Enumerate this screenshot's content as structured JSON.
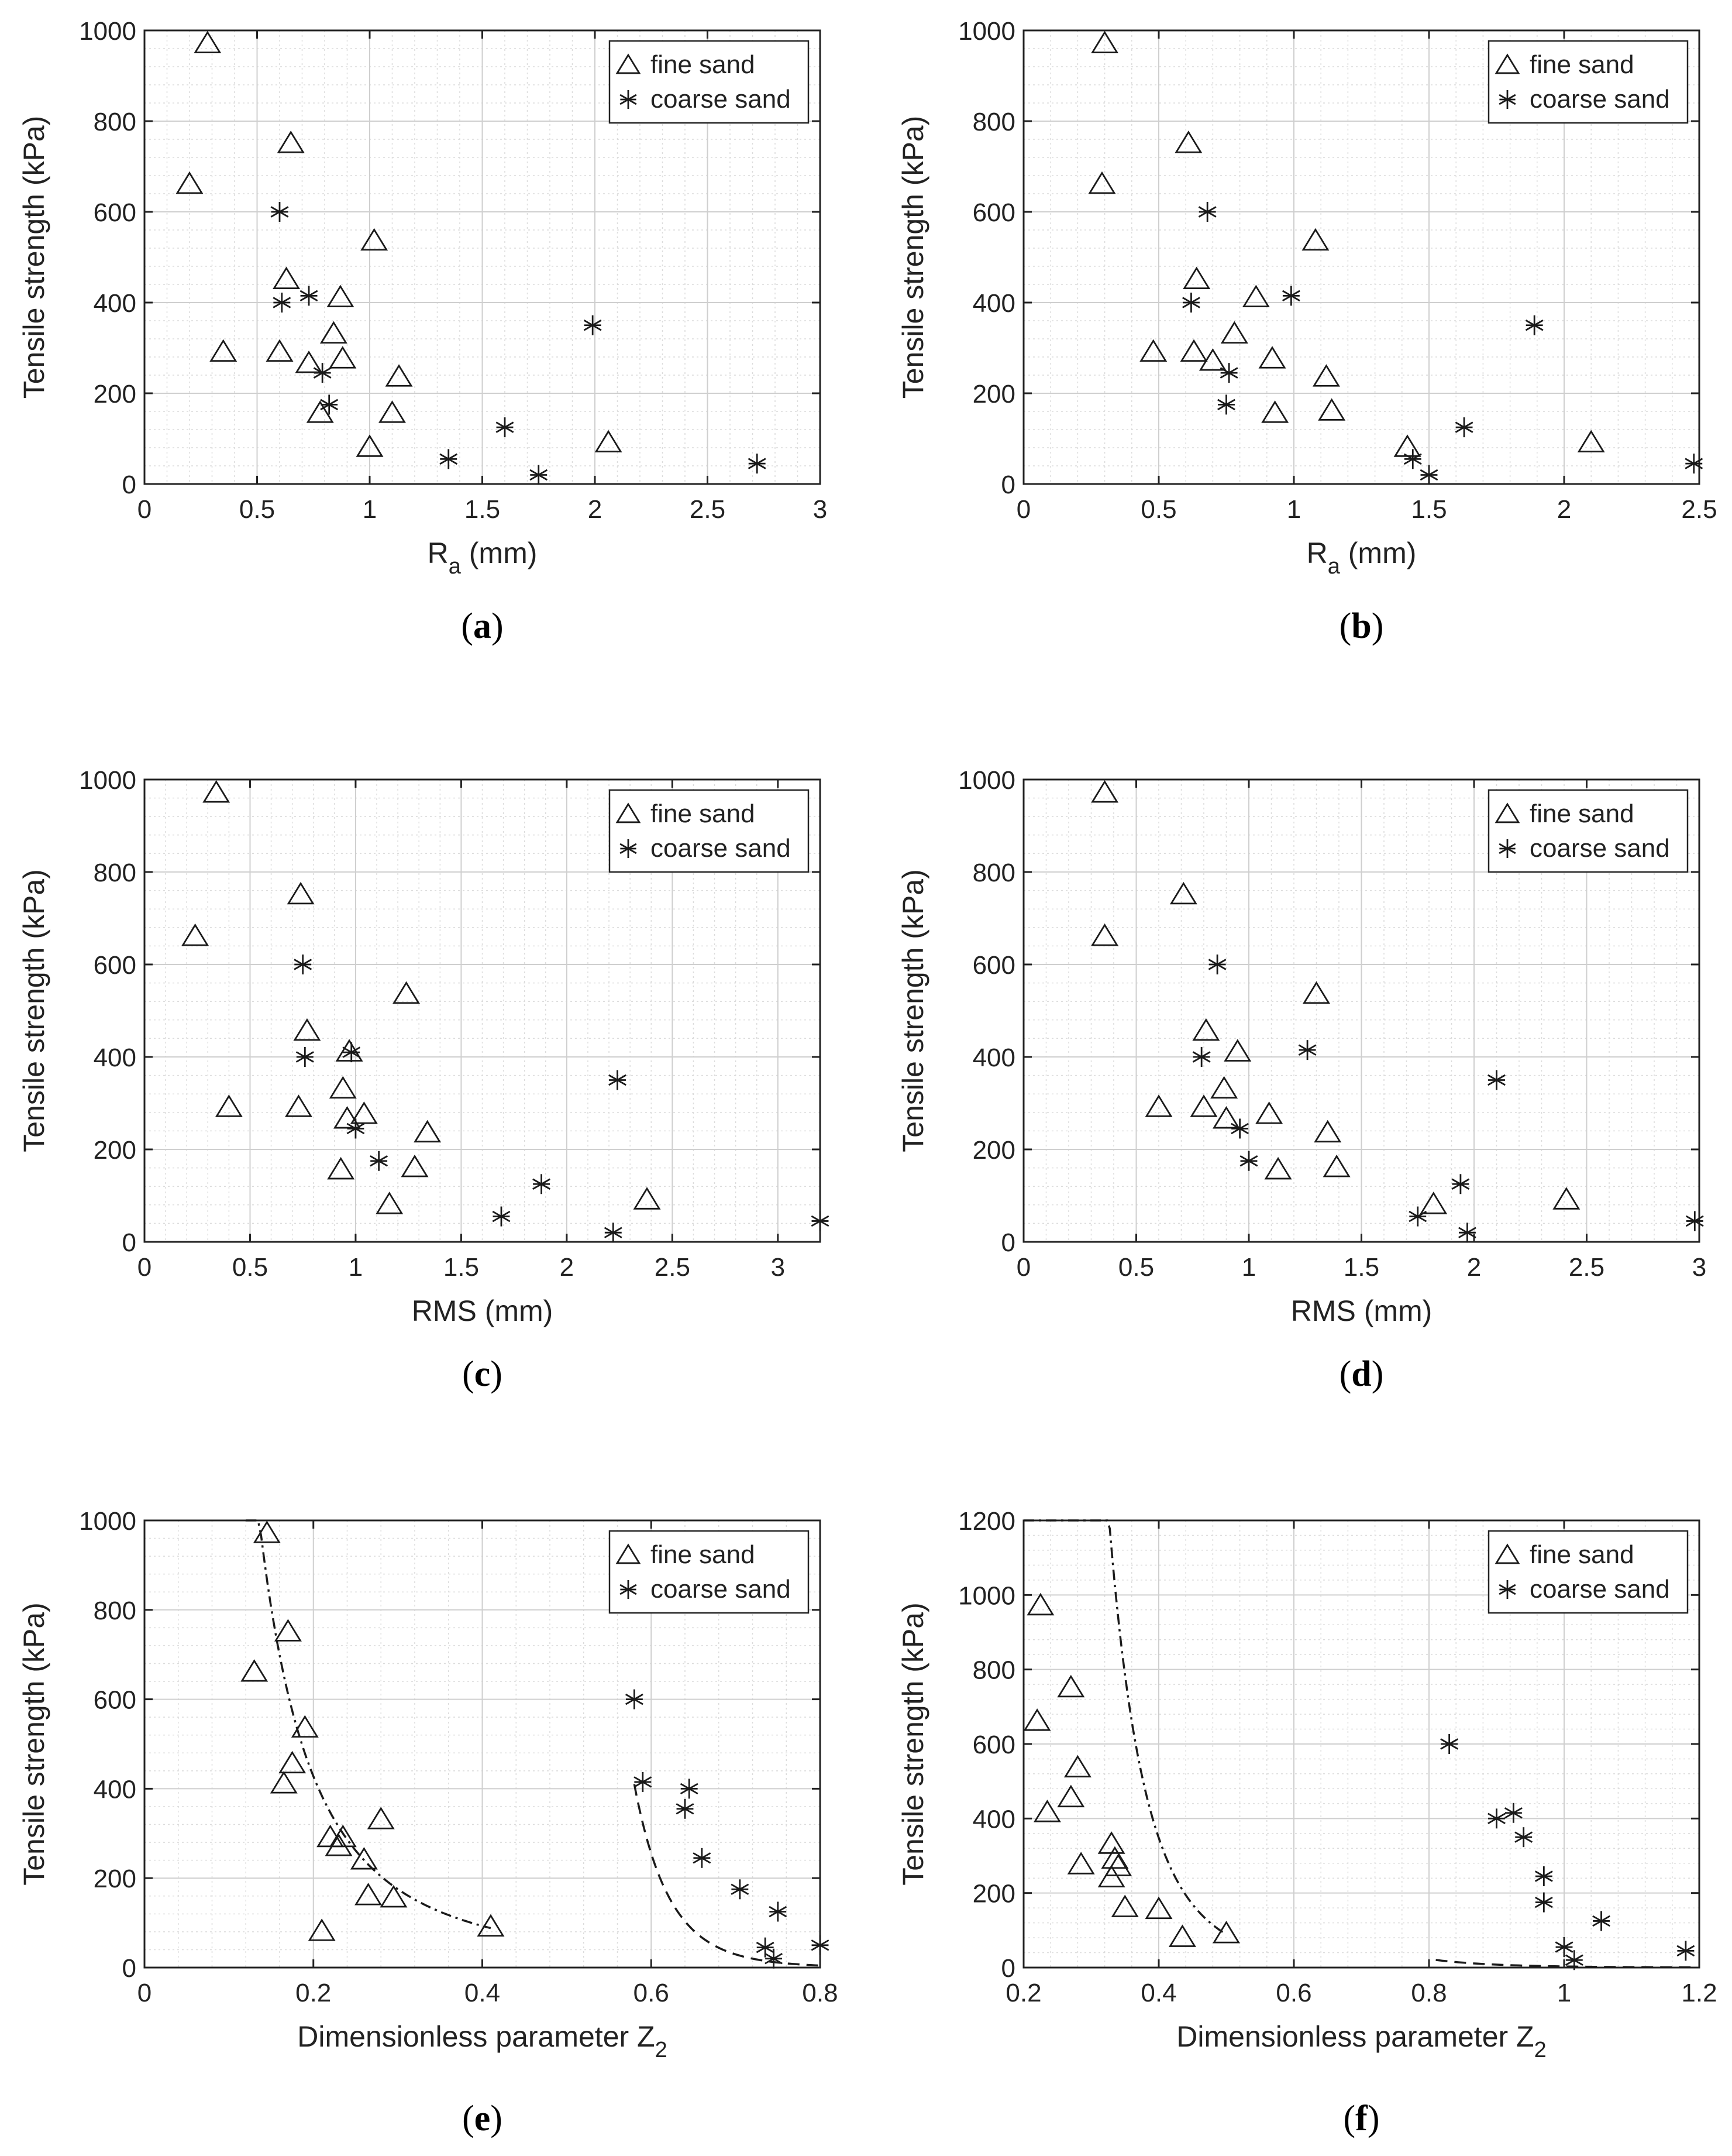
{
  "colors": {
    "marker": "#1a1a1a",
    "grid": "#dcdcdc",
    "axis": "#222222",
    "fit": "#1a1a1a"
  },
  "chart_data": [
    {
      "panel": "a",
      "type": "scatter",
      "caption": "(a)",
      "xlabel": "R",
      "xlabel_sub": "a",
      "xlabel_tail": " (mm)",
      "ylabel": "Tensile strength (kPa)",
      "xlim": [
        0,
        3
      ],
      "ylim": [
        0,
        1000
      ],
      "xticks": [
        0,
        0.5,
        1,
        1.5,
        2,
        2.5,
        3
      ],
      "xticklabels": [
        "0",
        "0.5",
        "1",
        "1.5",
        "2",
        "2.5",
        "3"
      ],
      "yticks": [
        0,
        200,
        400,
        600,
        800,
        1000
      ],
      "yticklabels": [
        "0",
        "200",
        "400",
        "600",
        "800",
        "1000"
      ],
      "grid": true,
      "legend_loc": "top-right",
      "series": [
        {
          "name": "fine sand",
          "marker": "triangle",
          "x": [
            0.28,
            0.2,
            0.65,
            0.63,
            0.35,
            0.6,
            0.73,
            0.78,
            0.84,
            0.87,
            0.88,
            1.02,
            1.1,
            1.13,
            1.0,
            2.06
          ],
          "y": [
            970,
            660,
            750,
            450,
            290,
            290,
            265,
            155,
            330,
            410,
            275,
            535,
            155,
            235,
            80,
            90
          ]
        },
        {
          "name": "coarse sand",
          "marker": "asterisk",
          "x": [
            0.6,
            0.61,
            0.73,
            0.79,
            0.82,
            1.35,
            1.6,
            1.75,
            1.99,
            2.72
          ],
          "y": [
            600,
            400,
            415,
            245,
            175,
            55,
            125,
            20,
            350,
            45
          ]
        }
      ]
    },
    {
      "panel": "b",
      "type": "scatter",
      "caption": "(b)",
      "xlabel": "R",
      "xlabel_sub": "a",
      "xlabel_tail": " (mm)",
      "ylabel": "Tensile strength (kPa)",
      "xlim": [
        0,
        2.5
      ],
      "ylim": [
        0,
        1000
      ],
      "xticks": [
        0,
        0.5,
        1,
        1.5,
        2,
        2.5
      ],
      "xticklabels": [
        "0",
        "0.5",
        "1",
        "1.5",
        "2",
        "2.5"
      ],
      "yticks": [
        0,
        200,
        400,
        600,
        800,
        1000
      ],
      "yticklabels": [
        "0",
        "200",
        "400",
        "600",
        "800",
        "1000"
      ],
      "grid": true,
      "legend_loc": "top-right",
      "series": [
        {
          "name": "fine sand",
          "marker": "triangle",
          "x": [
            0.3,
            0.29,
            0.61,
            0.64,
            0.48,
            0.63,
            0.7,
            0.78,
            0.86,
            0.92,
            0.93,
            1.08,
            1.12,
            1.14,
            1.42,
            2.1
          ],
          "y": [
            970,
            660,
            750,
            450,
            290,
            290,
            270,
            330,
            410,
            275,
            155,
            535,
            235,
            160,
            80,
            90
          ]
        },
        {
          "name": "coarse sand",
          "marker": "asterisk",
          "x": [
            0.68,
            0.62,
            0.99,
            0.76,
            0.75,
            1.44,
            1.5,
            1.63,
            1.89,
            2.48
          ],
          "y": [
            600,
            400,
            415,
            245,
            175,
            55,
            20,
            125,
            350,
            45
          ]
        }
      ]
    },
    {
      "panel": "c",
      "type": "scatter",
      "caption": "(c)",
      "xlabel": "RMS (mm)",
      "xlabel_sub": "",
      "xlabel_tail": "",
      "ylabel": "Tensile strength (kPa)",
      "xlim": [
        0,
        3.2
      ],
      "ylim": [
        0,
        1000
      ],
      "xticks": [
        0,
        0.5,
        1,
        1.5,
        2,
        2.5,
        3
      ],
      "xticklabels": [
        "0",
        "0.5",
        "1",
        "1.5",
        "2",
        "2.5",
        "3"
      ],
      "yticks": [
        0,
        200,
        400,
        600,
        800,
        1000
      ],
      "yticklabels": [
        "0",
        "200",
        "400",
        "600",
        "800",
        "1000"
      ],
      "grid": true,
      "legend_loc": "top-right",
      "series": [
        {
          "name": "fine sand",
          "marker": "triangle",
          "x": [
            0.34,
            0.24,
            0.74,
            0.77,
            0.4,
            0.73,
            0.94,
            0.96,
            1.04,
            0.93,
            0.97,
            1.24,
            1.34,
            1.28,
            1.16,
            2.38
          ],
          "y": [
            970,
            660,
            750,
            455,
            290,
            290,
            330,
            265,
            275,
            155,
            410,
            535,
            235,
            160,
            80,
            90
          ]
        },
        {
          "name": "coarse sand",
          "marker": "asterisk",
          "x": [
            0.75,
            0.76,
            0.98,
            1.0,
            1.11,
            1.69,
            1.88,
            2.22,
            2.24,
            3.2
          ],
          "y": [
            600,
            400,
            410,
            245,
            175,
            55,
            125,
            20,
            350,
            45
          ]
        }
      ]
    },
    {
      "panel": "d",
      "type": "scatter",
      "caption": "(d)",
      "xlabel": "RMS (mm)",
      "xlabel_sub": "",
      "xlabel_tail": "",
      "ylabel": "Tensile strength (kPa)",
      "xlim": [
        0,
        3
      ],
      "ylim": [
        0,
        1000
      ],
      "xticks": [
        0,
        0.5,
        1,
        1.5,
        2,
        2.5,
        3
      ],
      "xticklabels": [
        "0",
        "0.5",
        "1",
        "1.5",
        "2",
        "2.5",
        "3"
      ],
      "yticks": [
        0,
        200,
        400,
        600,
        800,
        1000
      ],
      "yticklabels": [
        "0",
        "200",
        "400",
        "600",
        "800",
        "1000"
      ],
      "grid": true,
      "legend_loc": "top-right",
      "series": [
        {
          "name": "fine sand",
          "marker": "triangle",
          "x": [
            0.36,
            0.36,
            0.71,
            0.81,
            0.6,
            0.8,
            0.9,
            0.89,
            0.95,
            1.09,
            1.13,
            1.3,
            1.35,
            1.39,
            1.82,
            2.41
          ],
          "y": [
            970,
            660,
            750,
            455,
            290,
            290,
            265,
            330,
            410,
            275,
            155,
            535,
            235,
            160,
            80,
            90
          ]
        },
        {
          "name": "coarse sand",
          "marker": "asterisk",
          "x": [
            0.86,
            0.79,
            1.26,
            0.96,
            1.0,
            1.75,
            1.94,
            1.97,
            2.1,
            2.98
          ],
          "y": [
            600,
            400,
            415,
            245,
            175,
            55,
            125,
            20,
            350,
            45
          ]
        }
      ]
    },
    {
      "panel": "e",
      "type": "scatter",
      "caption": "(e)",
      "xlabel": "Dimensionless parameter Z",
      "xlabel_sub": "2",
      "xlabel_tail": "",
      "ylabel": "Tensile strength (kPa)",
      "xlim": [
        0,
        0.8
      ],
      "ylim": [
        0,
        1000
      ],
      "xticks": [
        0,
        0.2,
        0.4,
        0.6,
        0.8
      ],
      "xticklabels": [
        "0",
        "0.2",
        "0.4",
        "0.6",
        "0.8"
      ],
      "yticks": [
        0,
        200,
        400,
        600,
        800,
        1000
      ],
      "yticklabels": [
        "0",
        "200",
        "400",
        "600",
        "800",
        "1000"
      ],
      "grid": true,
      "legend_loc": "top-right",
      "series": [
        {
          "name": "fine sand",
          "marker": "triangle",
          "x": [
            0.145,
            0.13,
            0.17,
            0.19,
            0.175,
            0.165,
            0.22,
            0.23,
            0.235,
            0.28,
            0.26,
            0.265,
            0.295,
            0.21,
            0.41
          ],
          "y": [
            970,
            660,
            750,
            535,
            455,
            410,
            290,
            270,
            290,
            330,
            240,
            160,
            155,
            80,
            90
          ]
        },
        {
          "name": "coarse sand",
          "marker": "asterisk",
          "x": [
            0.58,
            0.59,
            0.645,
            0.64,
            0.66,
            0.705,
            0.735,
            0.75,
            0.745,
            0.8
          ],
          "y": [
            600,
            415,
            400,
            355,
            245,
            175,
            45,
            125,
            20,
            50
          ]
        }
      ],
      "fits": [
        {
          "series": "fine sand",
          "style": "dash-dot",
          "a": 12.4,
          "b": 2.2,
          "x_from": 0.12,
          "x_to": 0.41
        },
        {
          "series": "coarse sand",
          "style": "dashed",
          "a": 0.2,
          "b": 14.0,
          "x_from": 0.58,
          "x_to": 0.8
        }
      ]
    },
    {
      "panel": "f",
      "type": "scatter",
      "caption": "(f)",
      "xlabel": "Dimensionless parameter Z",
      "xlabel_sub": "2",
      "xlabel_tail": "",
      "ylabel": "Tensile strength (kPa)",
      "xlim": [
        0.2,
        1.2
      ],
      "ylim": [
        0,
        1200
      ],
      "xticks": [
        0.2,
        0.4,
        0.6,
        0.8,
        1,
        1.2
      ],
      "xticklabels": [
        "0.2",
        "0.4",
        "0.6",
        "0.8",
        "1",
        "1.2"
      ],
      "yticks": [
        0,
        200,
        400,
        600,
        800,
        1000,
        1200
      ],
      "yticklabels": [
        "0",
        "200",
        "400",
        "600",
        "800",
        "1000",
        "1200"
      ],
      "grid": true,
      "legend_loc": "top-right",
      "series": [
        {
          "name": "fine sand",
          "marker": "triangle",
          "x": [
            0.225,
            0.22,
            0.27,
            0.235,
            0.28,
            0.27,
            0.285,
            0.33,
            0.335,
            0.34,
            0.33,
            0.35,
            0.4,
            0.435,
            0.5
          ],
          "y": [
            970,
            660,
            750,
            415,
            535,
            455,
            275,
            330,
            290,
            270,
            240,
            160,
            155,
            80,
            90
          ]
        },
        {
          "name": "coarse sand",
          "marker": "asterisk",
          "x": [
            0.83,
            0.9,
            0.925,
            0.94,
            0.97,
            0.97,
            1.0,
            1.015,
            1.055,
            1.18
          ],
          "y": [
            600,
            400,
            415,
            350,
            245,
            175,
            55,
            20,
            125,
            45
          ]
        }
      ],
      "fits": [
        {
          "series": "fine sand",
          "style": "dash-dot",
          "a": 1.3,
          "b": 6.1,
          "x_from": 0.2,
          "x_to": 0.5
        },
        {
          "series": "coarse sand",
          "style": "dashed",
          "a": 3.01,
          "b": 9.1,
          "x_from": 0.81,
          "x_to": 1.19
        }
      ]
    }
  ]
}
